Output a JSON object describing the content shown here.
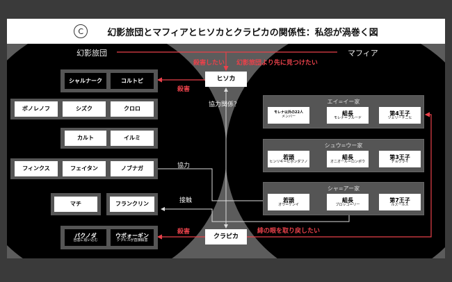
{
  "header": {
    "badge": "C",
    "title": "幻影旅団とマフィアとヒソカとクラピカの関係性：私怨が渦巻く図"
  },
  "labels": {
    "troupe": "幻影旅団",
    "mafia": "マフィア",
    "kill_want": "殺害したい",
    "find_first": "幻影旅団より先に見つけたい",
    "kill": "殺害",
    "coop_q": "協力関係？",
    "coop": "協力",
    "contact": "接触",
    "kill2": "殺害",
    "scarlet": "緋の眼を取り戻したい"
  },
  "hisoka": "ヒソカ",
  "kurapika": "クラピカ",
  "troupe": {
    "row1": [
      "シャルナーク",
      "コルトピ"
    ],
    "row2": [
      "ボノレノフ",
      "シズク",
      "クロロ"
    ],
    "row3": [
      "カルト",
      "イルミ"
    ],
    "row4": [
      "フィンクス",
      "フェイタン",
      "ノブナガ"
    ],
    "row5": [
      "マチ",
      "フランクリン"
    ],
    "row6": [
      {
        "name": "パクノダ",
        "note": "自害に追い込む"
      },
      {
        "name": "ウボォーギン",
        "note": "クラピカが直接殺害"
      }
    ]
  },
  "mafia": [
    {
      "family": "エイ=イー家",
      "left": {
        "title": "モレナ以外の22人",
        "sub": "メンバー"
      },
      "boss": {
        "title": "組長",
        "sub": "モレナ＝プルード"
      },
      "prince": {
        "title": "第4王子",
        "sub": "ツェリードニヒ"
      }
    },
    {
      "family": "シュウ=ウー家",
      "left": {
        "title": "若頭",
        "sub": "ヒンリギ＝ピボンダフノ"
      },
      "boss": {
        "title": "組長",
        "sub": "オニオール＝ロンポウ"
      },
      "prince": {
        "title": "第3王子",
        "sub": "チョウライ"
      }
    },
    {
      "family": "シャ=アー家",
      "left": {
        "title": "若頭",
        "sub": "オウ＝ケンイ"
      },
      "boss": {
        "title": "組長",
        "sub": "ブロッコ＝リー"
      },
      "prince": {
        "title": "第7王子",
        "sub": "ルズールス"
      }
    }
  ],
  "colors": {
    "red": "#e8414a",
    "background": "#5c5c5c",
    "circle": "#000000"
  }
}
